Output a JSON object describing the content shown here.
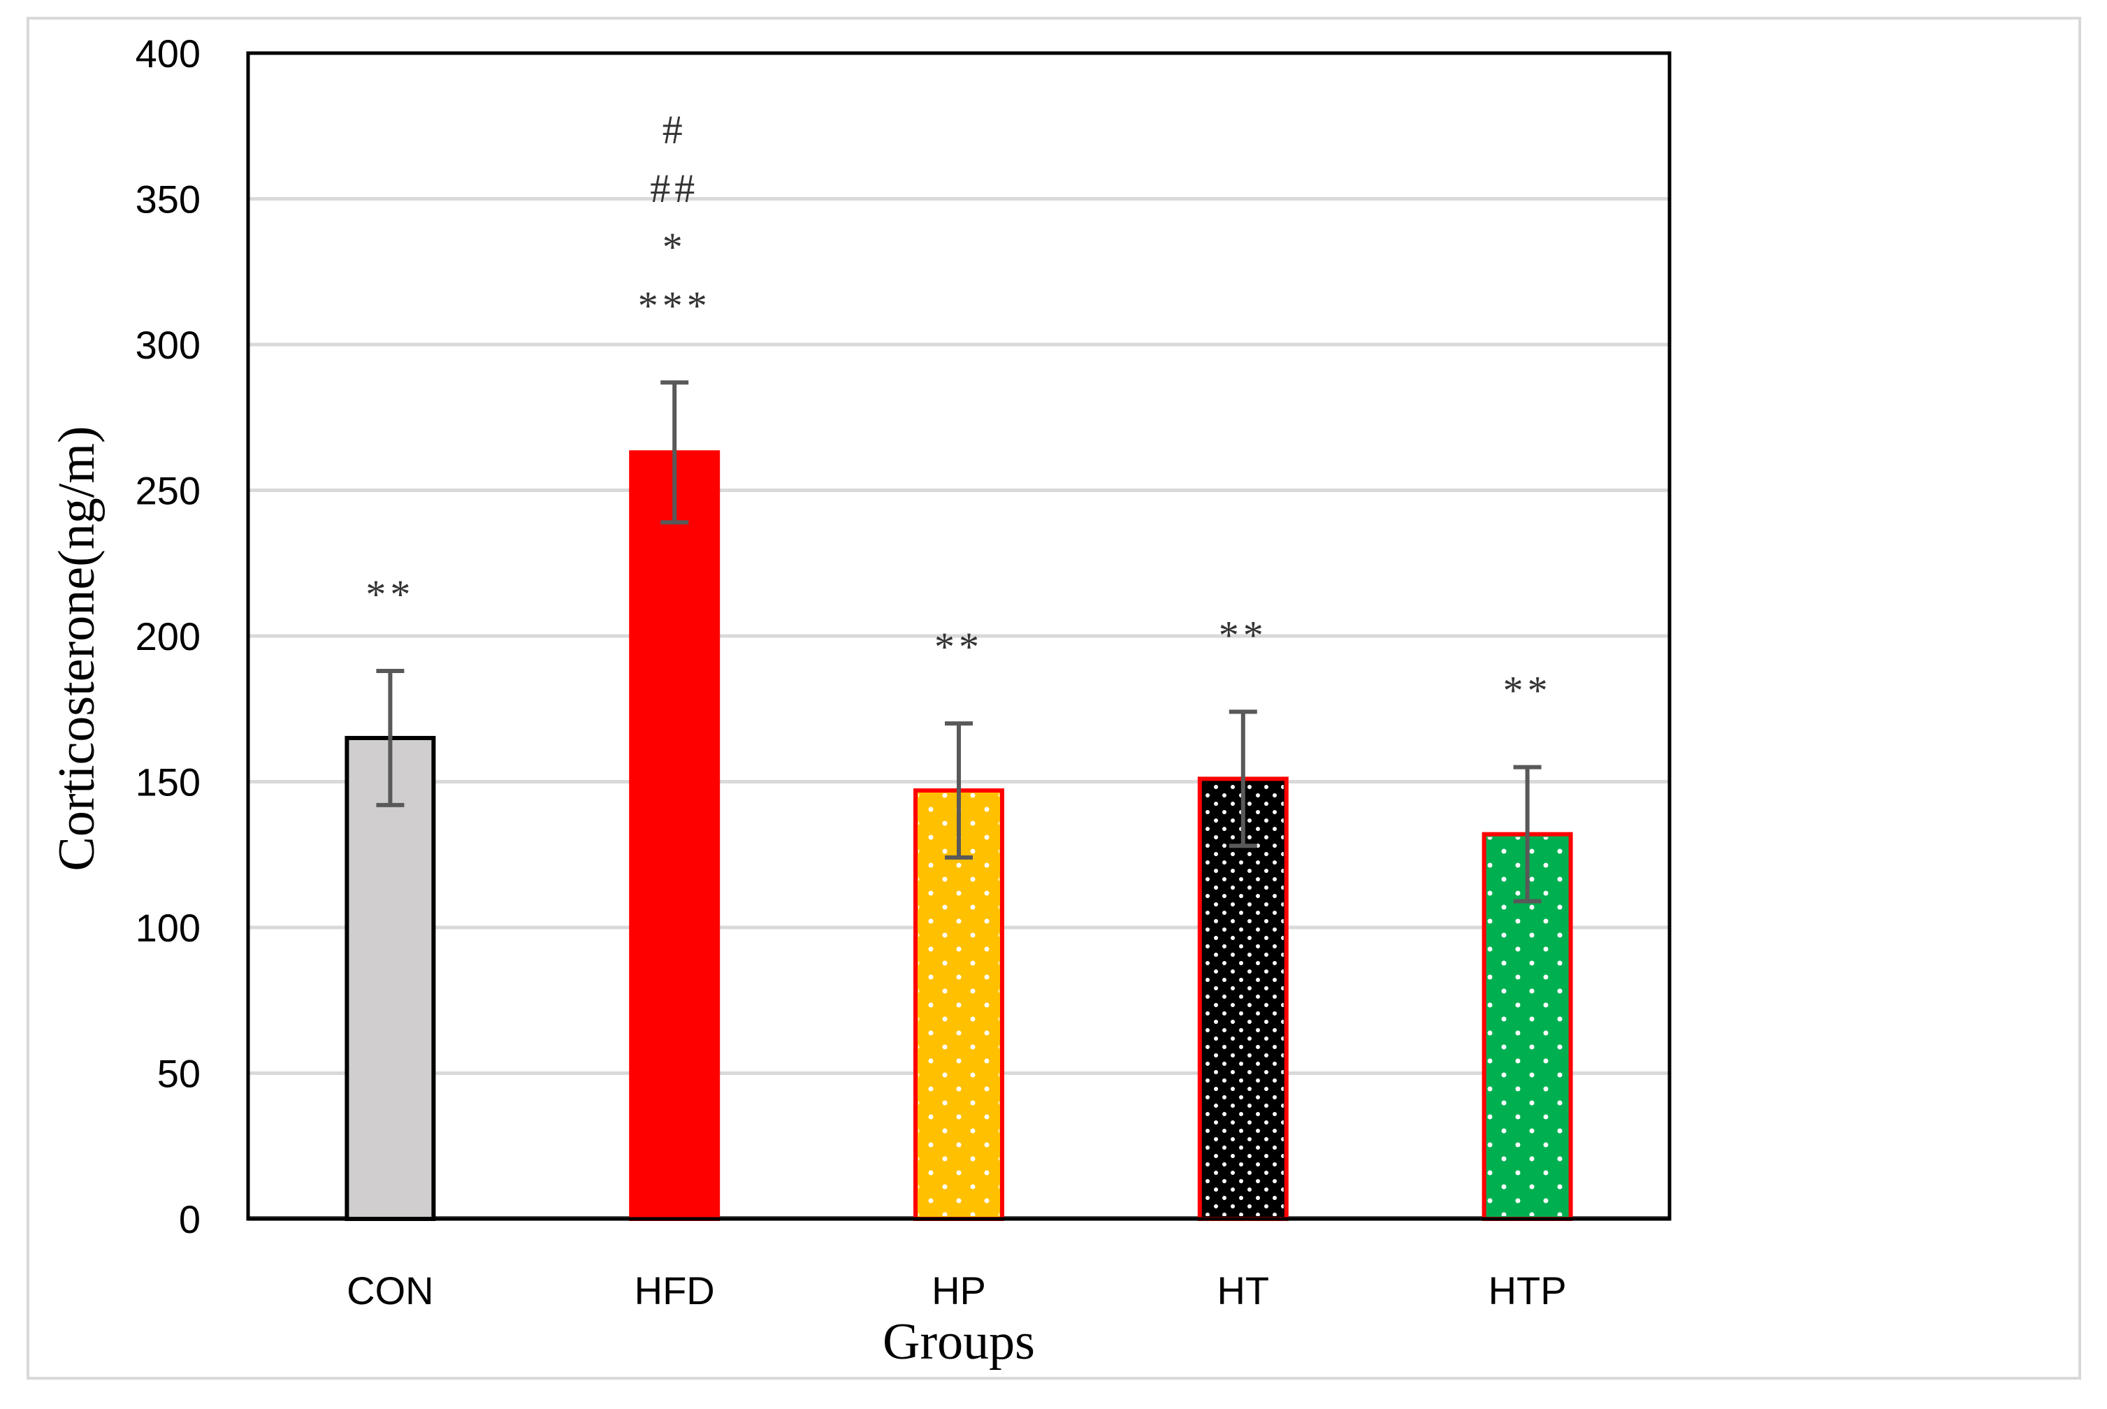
{
  "chart_data": {
    "type": "bar",
    "title": "",
    "xlabel": "Groups",
    "ylabel": "Corticosterone(ng/m)",
    "ylim": [
      0,
      400
    ],
    "yticks": [
      "0",
      "50",
      "100",
      "150",
      "200",
      "250",
      "300",
      "350",
      "400"
    ],
    "grid": true,
    "categories": [
      "CON",
      "HFD",
      "HP",
      "HT",
      "HTP"
    ],
    "values": [
      165,
      263,
      147,
      151,
      132
    ],
    "errors": [
      23,
      24,
      23,
      23,
      23
    ],
    "bar_colors": [
      "#d0cece",
      "#ff0000",
      "#ffc000",
      "#000000",
      "#00b050"
    ],
    "bar_borders": [
      "#000000",
      "#ff0000",
      "#ff0000",
      "#ff0000",
      "#ff0000"
    ],
    "bar_patterns": [
      "none",
      "none",
      "dots",
      "dots",
      "dots"
    ],
    "annotations": [
      [
        "**"
      ],
      [
        "#",
        "##",
        "*",
        "***"
      ],
      [
        "**"
      ],
      [
        "**"
      ],
      [
        "**"
      ]
    ]
  }
}
